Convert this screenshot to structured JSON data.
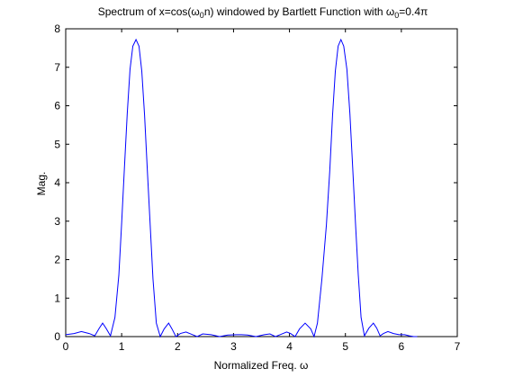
{
  "chart_data": {
    "type": "line",
    "title_parts": {
      "t1": "Spectrum of x=cos(ω",
      "s1": "0",
      "t2": "n) windowed by Bartlett Function with ω",
      "s2": "0",
      "t3": "=0.4π"
    },
    "xlabel": "Normalized Freq. ω",
    "ylabel": "Mag.",
    "xlim": [
      0,
      7
    ],
    "ylim": [
      0,
      8
    ],
    "x_ticks": [
      "0",
      "1",
      "2",
      "3",
      "4",
      "5",
      "6",
      "7"
    ],
    "y_ticks": [
      "0",
      "1",
      "2",
      "3",
      "4",
      "5",
      "6",
      "7",
      "8"
    ],
    "grid": false,
    "line_color": "#0000ff",
    "series": [
      {
        "x": [
          0,
          0.15,
          0.28,
          0.42,
          0.52,
          0.6,
          0.66,
          0.72,
          0.8,
          0.88,
          0.95,
          1.0,
          1.05,
          1.1,
          1.15,
          1.2,
          1.2566,
          1.31,
          1.36,
          1.41,
          1.46,
          1.51,
          1.56,
          1.62,
          1.69,
          1.76,
          1.84,
          1.9,
          1.97,
          2.05,
          2.15,
          2.25,
          2.35,
          2.45,
          2.6,
          2.75,
          2.9,
          3.05,
          3.14,
          3.25,
          3.4,
          3.55,
          3.65,
          3.75,
          3.85,
          3.95,
          4.02,
          4.1,
          4.18,
          4.28,
          4.38,
          4.44,
          4.5,
          4.58,
          4.66,
          4.72,
          4.77,
          4.82,
          4.87,
          4.92,
          4.97,
          5.0265,
          5.08,
          5.13,
          5.18,
          5.23,
          5.28,
          5.34,
          5.42,
          5.5,
          5.56,
          5.62,
          5.68,
          5.76,
          5.86,
          5.96,
          6.06,
          6.14,
          6.22,
          6.283
        ],
        "y": [
          0.05,
          0.08,
          0.13,
          0.08,
          0.02,
          0.22,
          0.35,
          0.22,
          0.02,
          0.5,
          1.6,
          2.95,
          4.4,
          5.8,
          6.95,
          7.55,
          7.72,
          7.55,
          6.9,
          5.75,
          4.3,
          2.9,
          1.5,
          0.35,
          0.0,
          0.2,
          0.35,
          0.2,
          0.0,
          0.08,
          0.12,
          0.06,
          0.0,
          0.07,
          0.05,
          0.0,
          0.04,
          0.05,
          0.05,
          0.04,
          0.0,
          0.05,
          0.07,
          0.0,
          0.06,
          0.12,
          0.08,
          0.0,
          0.2,
          0.35,
          0.2,
          0.0,
          0.35,
          1.5,
          2.9,
          4.3,
          5.75,
          6.9,
          7.55,
          7.72,
          7.55,
          6.95,
          5.8,
          4.4,
          2.95,
          1.6,
          0.5,
          0.02,
          0.22,
          0.35,
          0.22,
          0.02,
          0.08,
          0.13,
          0.08,
          0.05,
          0.05,
          0.02,
          0.0,
          0.0
        ]
      }
    ]
  }
}
